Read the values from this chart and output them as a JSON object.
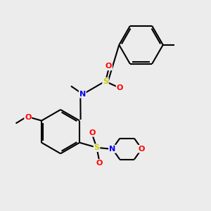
{
  "background_color": "#ececec",
  "bond_color": "#000000",
  "atom_colors": {
    "N": "#0000ee",
    "O": "#ff0000",
    "S": "#cccc00",
    "C": "#000000"
  }
}
